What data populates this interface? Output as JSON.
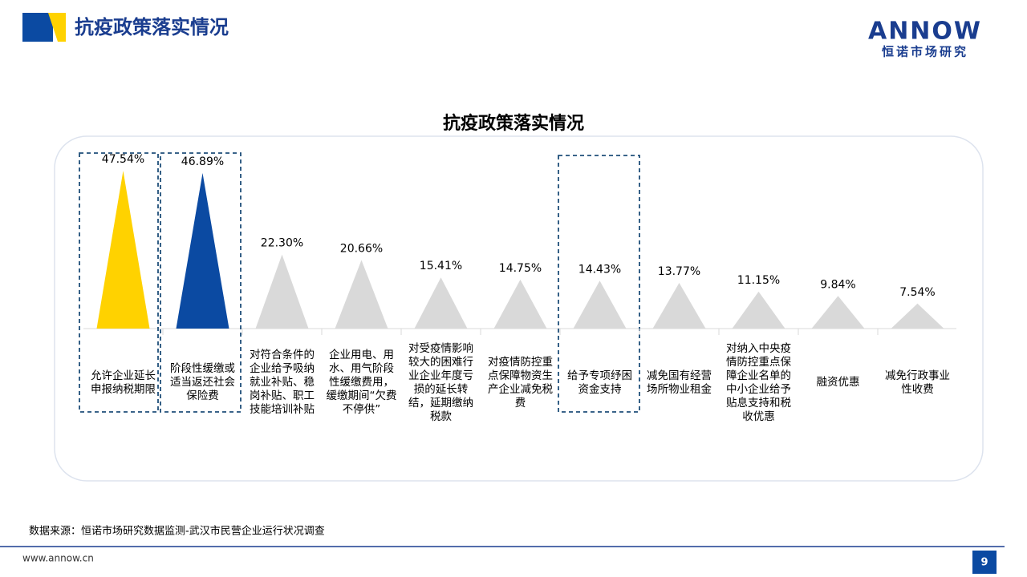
{
  "header": {
    "title": "抗疫政策落实情况",
    "logo": "ANNOW",
    "logo_sub": "恒诺市场研究"
  },
  "chart_data": {
    "type": "triangle",
    "title": "抗疫政策落实情况",
    "categories": [
      "允许企业延长申报纳税期限",
      "阶段性缓缴或适当返还社会保险费",
      "对符合条件的企业给予吸纳就业补贴、稳岗补贴、职工技能培训补贴",
      "企业用电、用水、用气阶段性缓缴费用，缓缴期间“欠费不停供”",
      "对受疫情影响较大的困难行业企业年度亏损的延长转结，延期缴纳税款",
      "对疫情防控重点保障物资生产企业减免税费",
      "给予专项纾困资金支持",
      "减免国有经营场所物业租金",
      "对纳入中央疫情防控重点保障企业名单的中小企业给予贴息支持和税收优惠",
      "融资优惠",
      "减免行政事业性收费"
    ],
    "values": [
      47.54,
      46.89,
      22.3,
      20.66,
      15.41,
      14.75,
      14.43,
      13.77,
      11.15,
      9.84,
      7.54
    ],
    "value_labels": [
      "47.54%",
      "46.89%",
      "22.30%",
      "20.66%",
      "15.41%",
      "14.75%",
      "14.43%",
      "13.77%",
      "11.15%",
      "9.84%",
      "7.54%"
    ],
    "colors": [
      "#ffd200",
      "#0b4aa2",
      "#d9d9d9",
      "#d9d9d9",
      "#d9d9d9",
      "#d9d9d9",
      "#d9d9d9",
      "#d9d9d9",
      "#d9d9d9",
      "#d9d9d9",
      "#d9d9d9"
    ]
  },
  "source": "数据来源：恒诺市场研究数据监测-武汉市民营企业运行状况调查",
  "footer": {
    "url": "www.annow.cn",
    "page": "9"
  }
}
